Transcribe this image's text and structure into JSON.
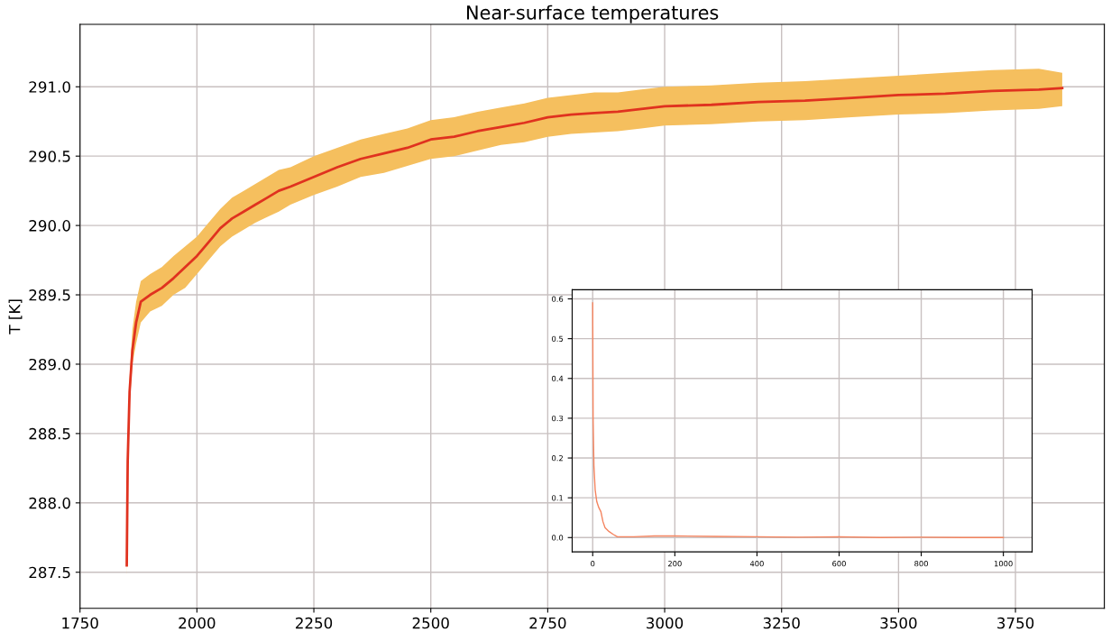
{
  "chart_data": [
    {
      "type": "line",
      "title": "Near-surface temperatures",
      "ylabel": "T [K]",
      "xlim": [
        1750,
        3940
      ],
      "ylim": [
        287.24,
        291.45
      ],
      "xticks": [
        1750,
        2000,
        2250,
        2500,
        2750,
        3000,
        3250,
        3500,
        3750
      ],
      "yticks": [
        {
          "value": 287.5,
          "label": "287.5"
        },
        {
          "value": 288.0,
          "label": "288.0"
        },
        {
          "value": 288.5,
          "label": "288.5"
        },
        {
          "value": 289.0,
          "label": "289.0"
        },
        {
          "value": 289.5,
          "label": "289.5"
        },
        {
          "value": 290.0,
          "label": "290.0"
        },
        {
          "value": 290.5,
          "label": "290.5"
        },
        {
          "value": 291.0,
          "label": "291.0"
        }
      ],
      "grid": true,
      "line_style": "solid",
      "marker": "none",
      "series": [
        {
          "color": "#e0321f",
          "x": [
            1850,
            1852,
            1856,
            1862,
            1870,
            1880,
            1900,
            1925,
            1950,
            1975,
            2000,
            2025,
            2050,
            2075,
            2100,
            2125,
            2150,
            2175,
            2200,
            2250,
            2300,
            2350,
            2400,
            2450,
            2500,
            2550,
            2600,
            2650,
            2700,
            2750,
            2800,
            2850,
            2900,
            2950,
            3000,
            3100,
            3200,
            3300,
            3400,
            3500,
            3600,
            3700,
            3800,
            3850
          ],
          "values": [
            287.55,
            288.3,
            288.8,
            289.1,
            289.3,
            289.45,
            289.5,
            289.55,
            289.62,
            289.7,
            289.78,
            289.88,
            289.98,
            290.05,
            290.1,
            290.15,
            290.2,
            290.25,
            290.28,
            290.35,
            290.42,
            290.48,
            290.52,
            290.56,
            290.62,
            290.64,
            290.68,
            290.71,
            290.74,
            290.78,
            290.8,
            290.81,
            290.82,
            290.84,
            290.86,
            290.87,
            290.89,
            290.9,
            290.92,
            290.94,
            290.95,
            290.97,
            290.98,
            290.99
          ],
          "lower": [
            287.45,
            288.2,
            288.7,
            289.0,
            289.15,
            289.3,
            289.38,
            289.42,
            289.5,
            289.55,
            289.65,
            289.75,
            289.85,
            289.92,
            289.97,
            290.02,
            290.06,
            290.1,
            290.15,
            290.22,
            290.28,
            290.35,
            290.38,
            290.43,
            290.48,
            290.5,
            290.54,
            290.58,
            290.6,
            290.64,
            290.66,
            290.67,
            290.68,
            290.7,
            290.72,
            290.73,
            290.75,
            290.76,
            290.78,
            290.8,
            290.81,
            290.83,
            290.84,
            290.86
          ],
          "upper": [
            287.6,
            288.4,
            288.9,
            289.25,
            289.45,
            289.6,
            289.65,
            289.7,
            289.78,
            289.85,
            289.92,
            290.02,
            290.12,
            290.2,
            290.25,
            290.3,
            290.35,
            290.4,
            290.42,
            290.5,
            290.56,
            290.62,
            290.66,
            290.7,
            290.76,
            290.78,
            290.82,
            290.85,
            290.88,
            290.92,
            290.94,
            290.96,
            290.96,
            290.98,
            291.0,
            291.01,
            291.03,
            291.04,
            291.06,
            291.08,
            291.1,
            291.12,
            291.13,
            291.1
          ]
        }
      ]
    },
    {
      "type": "line",
      "xlim": [
        -50,
        1070
      ],
      "ylim": [
        -0.036,
        0.623
      ],
      "xticks": [
        0,
        200,
        400,
        600,
        800,
        1000
      ],
      "yticks": [
        {
          "value": 0.0,
          "label": "0.0"
        },
        {
          "value": 0.1,
          "label": "0.1"
        },
        {
          "value": 0.2,
          "label": "0.2"
        },
        {
          "value": 0.3,
          "label": "0.3"
        },
        {
          "value": 0.4,
          "label": "0.4"
        },
        {
          "value": 0.5,
          "label": "0.5"
        },
        {
          "value": 0.6,
          "label": "0.6"
        }
      ],
      "grid": true,
      "line_style": "solid",
      "marker": "none",
      "series": [
        {
          "color": "#f4845f",
          "x": [
            0,
            1,
            3,
            6,
            10,
            15,
            20,
            25,
            30,
            35,
            40,
            50,
            60,
            100,
            150,
            200,
            300,
            400,
            500,
            600,
            700,
            800,
            900,
            1000
          ],
          "values": [
            0.59,
            0.3,
            0.18,
            0.12,
            0.09,
            0.075,
            0.065,
            0.04,
            0.025,
            0.02,
            0.015,
            0.008,
            0.002,
            0.002,
            0.004,
            0.004,
            0.003,
            0.002,
            0.001,
            0.002,
            0.0,
            0.001,
            0.0,
            0.0
          ]
        }
      ]
    }
  ]
}
